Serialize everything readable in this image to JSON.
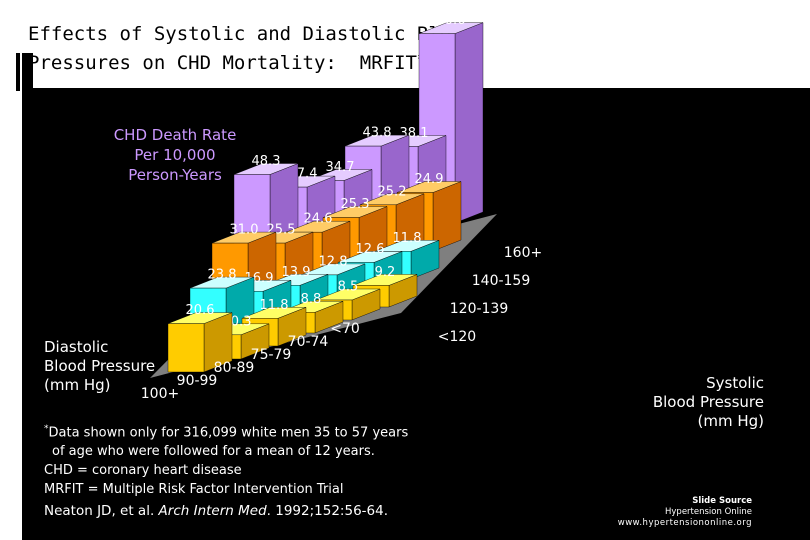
{
  "slide": {
    "title_line1": "Effects of Systolic and Diastolic Blood",
    "title_line2": "Pressures on CHD Mortality:",
    "title_tag": "MRFIT",
    "title_mark": "*"
  },
  "chart_data": {
    "type": "bar",
    "variant": "3d-grouped",
    "title": "CHD Death Rate Per 10,000 Person-Years",
    "ylabel_lines": [
      "CHD Death Rate",
      "Per 10,000",
      "Person-Years"
    ],
    "xlabel_lines": [
      "Systolic",
      "Blood Pressure",
      "(mm Hg)"
    ],
    "zlabel_lines": [
      "Diastolic",
      "Blood Pressure",
      "(mm Hg)"
    ],
    "systolic_categories": [
      "<120",
      "120-139",
      "140-159",
      "160+"
    ],
    "diastolic_categories": [
      "100+",
      "90-99",
      "80-89",
      "75-79",
      "70-74",
      "<70"
    ],
    "series": [
      {
        "name": "160+",
        "values": [
          48.3,
          37.4,
          34.7,
          43.8,
          38.1,
          80.6
        ]
      },
      {
        "name": "140-159",
        "values": [
          31.0,
          25.5,
          24.6,
          25.3,
          25.2,
          24.9
        ]
      },
      {
        "name": "120-139",
        "values": [
          23.8,
          16.9,
          13.9,
          12.8,
          12.6,
          11.8
        ]
      },
      {
        "name": "<120",
        "values": [
          20.6,
          10.3,
          11.8,
          8.8,
          8.5,
          9.2
        ]
      }
    ],
    "series_colors": {
      "160+": {
        "front": "#cc99ff",
        "top": "#e5ccff",
        "side": "#9966cc"
      },
      "140-159": {
        "front": "#ff9900",
        "top": "#ffcc66",
        "side": "#cc6600"
      },
      "120-139": {
        "front": "#33ffff",
        "top": "#ccffff",
        "side": "#00aaaa"
      },
      "<120": {
        "front": "#ffcc00",
        "top": "#ffff66",
        "side": "#cc9900"
      }
    },
    "floor_color": "#7f7f7f",
    "label_color": "#ffffff",
    "ylim": [
      0,
      90
    ]
  },
  "notes": {
    "mark": "*",
    "line1": "Data shown only for 316,099 white men 35 to 57 years",
    "line2": "of age who were followed for a mean of 12 years.",
    "line3": "CHD = coronary heart disease",
    "line4": "MRFIT = Multiple Risk Factor Intervention Trial",
    "citation_authors": "Neaton JD, et al.",
    "citation_journal": "Arch Intern Med",
    "citation_rest": ". 1992;152:56-64."
  },
  "source": {
    "title": "Slide Source",
    "name": "Hypertension Online",
    "url": "www.hypertensiononline.org"
  }
}
